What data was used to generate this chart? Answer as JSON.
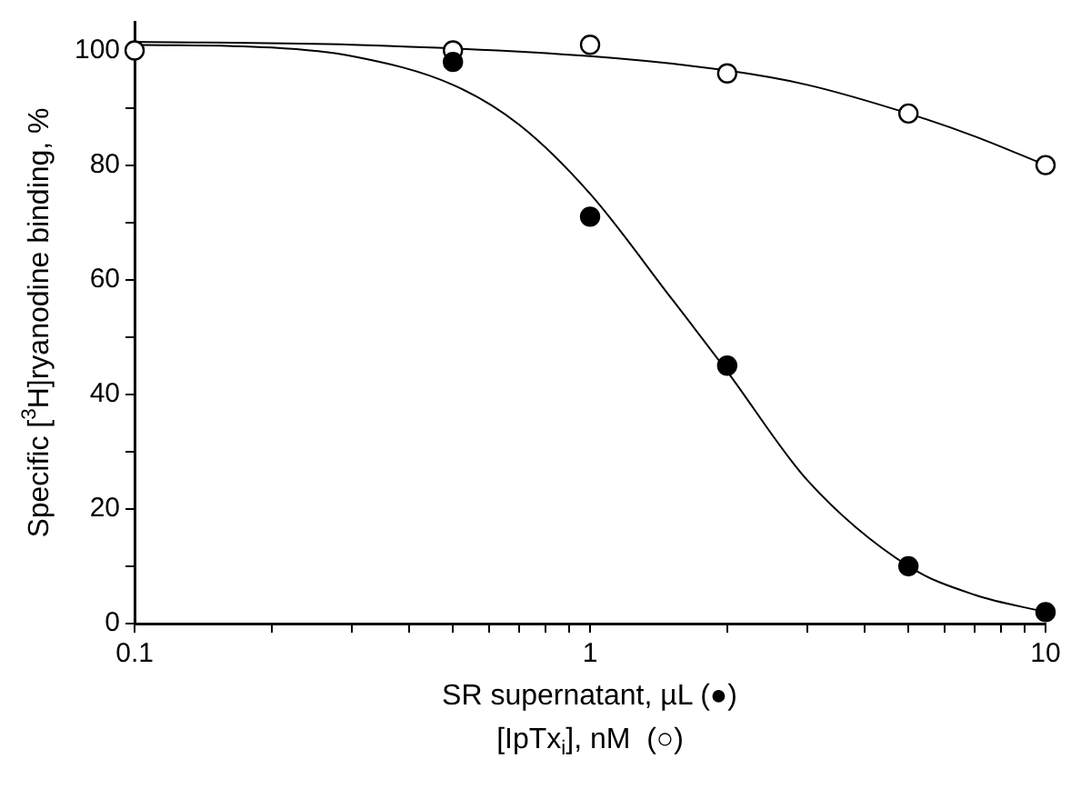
{
  "chart_data": {
    "type": "scatter",
    "xlabel": "SR supernatant, µL (●)\n[IpTx$_{i}$], nM  (○)",
    "ylabel": "Specific [$^{3}$H]ryanodine binding, %",
    "log": "x",
    "xlim": [
      0.1,
      10
    ],
    "ylim": [
      0,
      105
    ],
    "xticks": [
      {
        "value": 0.1,
        "label": "0.1"
      },
      {
        "value": 0.2,
        "label": null
      },
      {
        "value": 0.3,
        "label": null
      },
      {
        "value": 0.4,
        "label": null
      },
      {
        "value": 0.5,
        "label": null
      },
      {
        "value": 0.6,
        "label": null
      },
      {
        "value": 0.7,
        "label": null
      },
      {
        "value": 0.8,
        "label": null
      },
      {
        "value": 0.9,
        "label": null
      },
      1,
      {
        "value": 2,
        "label": null
      },
      {
        "value": 3,
        "label": null
      },
      {
        "value": 4,
        "label": null
      },
      {
        "value": 5,
        "label": null
      },
      {
        "value": 6,
        "label": null
      },
      {
        "value": 7,
        "label": null
      },
      {
        "value": 8,
        "label": null
      },
      {
        "value": 9,
        "label": null
      },
      10
    ],
    "yticks": [
      0,
      {
        "value": 10,
        "label": null
      },
      20,
      {
        "value": 30,
        "label": null
      },
      40,
      {
        "value": 50,
        "label": null
      },
      60,
      {
        "value": 70,
        "label": null
      },
      80,
      {
        "value": 90,
        "label": null
      },
      100
    ],
    "grid": false,
    "legend": false,
    "series": [
      {
        "marker": "circle",
        "color": "#000000",
        "x": [
          0.5,
          1,
          2,
          5,
          10
        ],
        "values": [
          98,
          71,
          45,
          10,
          2
        ]
      },
      {
        "marker": "circle",
        "color": "#ffffff",
        "x": [
          0.1,
          0.5,
          1,
          2,
          5,
          10
        ],
        "values": [
          100,
          100,
          101,
          96,
          89,
          80
        ]
      },
      {
        "type": "line",
        "marker": "none",
        "color": "#000000",
        "x": [
          0.1,
          0.2,
          0.3,
          0.5,
          0.7,
          1,
          1.5,
          2,
          3,
          5,
          7,
          10
        ],
        "values": [
          101,
          100.5,
          99,
          94,
          87,
          75,
          57,
          44,
          25,
          10,
          5,
          2
        ]
      },
      {
        "type": "line",
        "marker": "none",
        "color": "#000000",
        "x": [
          0.1,
          0.3,
          1,
          2,
          3,
          5,
          7,
          10
        ],
        "values": [
          101.5,
          101,
          99,
          96.5,
          94,
          89,
          85,
          80
        ]
      }
    ]
  }
}
